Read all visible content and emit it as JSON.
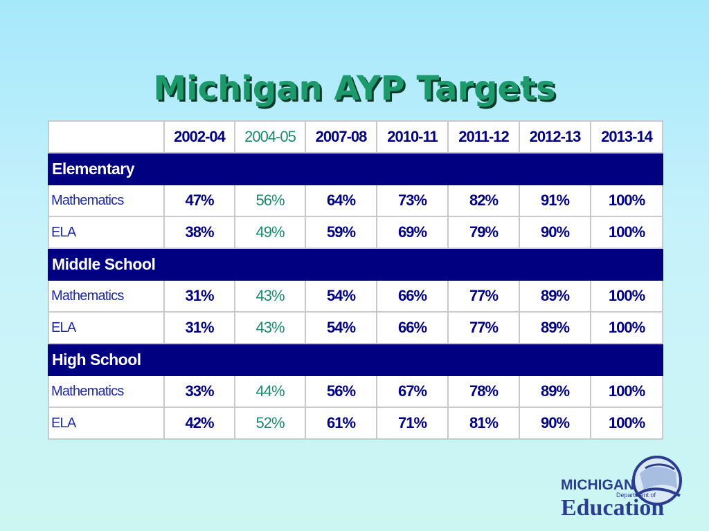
{
  "slide": {
    "title": "Michigan AYP Targets"
  },
  "table": {
    "columns": [
      "2002-04",
      "2004-05",
      "2007-08",
      "2010-11",
      "2011-12",
      "2012-13",
      "2013-14"
    ],
    "sections": [
      {
        "name": "Elementary",
        "rows": [
          {
            "subject": "Mathematics",
            "values": [
              "47%",
              "56%",
              "64%",
              "73%",
              "82%",
              "91%",
              "100%"
            ]
          },
          {
            "subject": "ELA",
            "values": [
              "38%",
              "49%",
              "59%",
              "69%",
              "79%",
              "90%",
              "100%"
            ]
          }
        ]
      },
      {
        "name": "Middle School",
        "rows": [
          {
            "subject": "Mathematics",
            "values": [
              "31%",
              "43%",
              "54%",
              "66%",
              "77%",
              "89%",
              "100%"
            ]
          },
          {
            "subject": "ELA",
            "values": [
              "31%",
              "43%",
              "54%",
              "66%",
              "77%",
              "89%",
              "100%"
            ]
          }
        ]
      },
      {
        "name": "High School",
        "rows": [
          {
            "subject": "Mathematics",
            "values": [
              "33%",
              "44%",
              "56%",
              "67%",
              "78%",
              "89%",
              "100%"
            ]
          },
          {
            "subject": "ELA",
            "values": [
              "42%",
              "52%",
              "61%",
              "71%",
              "81%",
              "90%",
              "100%"
            ]
          }
        ]
      }
    ]
  },
  "logo": {
    "line1": "MICHIGAN",
    "line2": "Department of",
    "line3": "Education"
  },
  "colors": {
    "header_band": "#000080",
    "value_text": "#000080",
    "accent_column": "#1a8a6a",
    "title": "#1c9a6c"
  }
}
